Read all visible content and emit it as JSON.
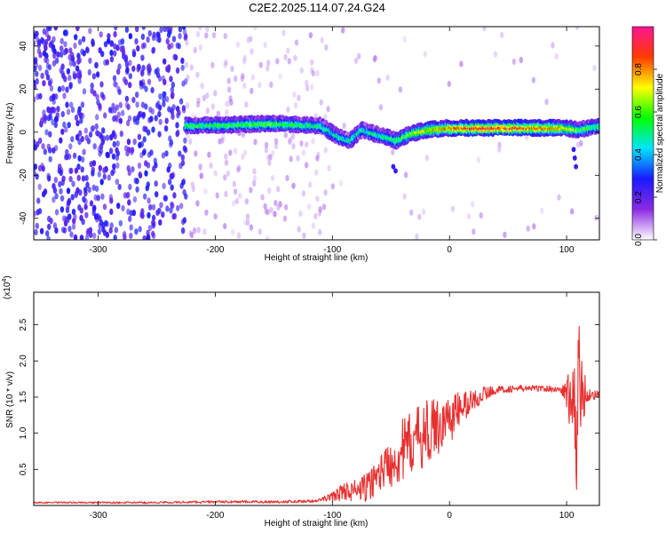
{
  "figure": {
    "title": "C2E2.2025.114.07.24.G24",
    "mark_color": "#e83030",
    "colormap": [
      "#ffffff",
      "#8b2be2",
      "#1a1aff",
      "#00e5ff",
      "#00ff00",
      "#ffff00",
      "#ff3b00",
      "#ff1493"
    ]
  },
  "chart_data": [
    {
      "type": "heatmap",
      "xlabel": "Height of straight line (km)",
      "ylabel": "Frequency (Hz)",
      "xlim": [
        -355,
        128
      ],
      "ylim": [
        -50,
        49
      ],
      "xticks": [
        -300,
        -200,
        -100,
        0,
        100
      ],
      "xtick_labels": [
        "-300",
        "-200",
        "-100",
        "0",
        "100"
      ],
      "yticks": [
        -40,
        -20,
        0,
        20,
        40
      ],
      "ytick_labels": [
        "-40",
        "-20",
        "0",
        "20",
        "40"
      ],
      "colorbar": {
        "label": "Normalized spectral amplitude",
        "range": [
          0,
          1
        ],
        "ticks": [
          0,
          0.2,
          0.4,
          0.6,
          0.8
        ],
        "tick_labels": [
          "0.0",
          "0.2",
          "0.4",
          "0.6",
          "0.8"
        ]
      },
      "band": {
        "x_start": -225,
        "center_freq": [
          [
            -225,
            3
          ],
          [
            -150,
            4
          ],
          [
            -110,
            3
          ],
          [
            -95,
            -2
          ],
          [
            -85,
            -4
          ],
          [
            -75,
            1
          ],
          [
            -55,
            -2
          ],
          [
            -45,
            -4
          ],
          [
            -35,
            -1
          ],
          [
            -20,
            1
          ],
          [
            0,
            2
          ],
          [
            50,
            2
          ],
          [
            100,
            2
          ],
          [
            110,
            1
          ],
          [
            128,
            3
          ]
        ],
        "amplitude": [
          [
            -225,
            0.55
          ],
          [
            -150,
            0.6
          ],
          [
            -100,
            0.5
          ],
          [
            -60,
            0.5
          ],
          [
            -20,
            0.75
          ],
          [
            0,
            0.85
          ],
          [
            30,
            0.95
          ],
          [
            60,
            0.9
          ],
          [
            90,
            0.85
          ],
          [
            110,
            0.6
          ],
          [
            128,
            0.55
          ]
        ]
      }
    },
    {
      "type": "line",
      "xlabel": "Height of straight line (km)",
      "ylabel": "SNR (10 * v/v)",
      "scale_label": "(x10",
      "scale_exp": "4",
      "scale_suffix": ")",
      "xlim": [
        -355,
        128
      ],
      "ylim": [
        0,
        2.95
      ],
      "xticks": [
        -300,
        -200,
        -100,
        0,
        100
      ],
      "xtick_labels": [
        "-300",
        "-200",
        "-100",
        "0",
        "100"
      ],
      "yticks": [
        0.5,
        1.0,
        1.5,
        2.0,
        2.5
      ],
      "ytick_labels": [
        "0.5",
        "1.0",
        "1.5",
        "2.0",
        "2.5"
      ],
      "series": [
        {
          "points": [
            [
              -355,
              0.04
            ],
            [
              -300,
              0.04
            ],
            [
              -250,
              0.04
            ],
            [
              -200,
              0.05
            ],
            [
              -150,
              0.05
            ],
            [
              -115,
              0.06
            ],
            [
              -100,
              0.12
            ],
            [
              -90,
              0.2
            ],
            [
              -80,
              0.2
            ],
            [
              -70,
              0.25
            ],
            [
              -60,
              0.45
            ],
            [
              -50,
              0.6
            ],
            [
              -40,
              0.75
            ],
            [
              -30,
              0.9
            ],
            [
              -20,
              1.0
            ],
            [
              -10,
              1.1
            ],
            [
              0,
              1.2
            ],
            [
              10,
              1.35
            ],
            [
              20,
              1.45
            ],
            [
              30,
              1.55
            ],
            [
              40,
              1.6
            ],
            [
              60,
              1.62
            ],
            [
              80,
              1.62
            ],
            [
              95,
              1.6
            ],
            [
              100,
              1.55
            ],
            [
              103,
              1.4
            ],
            [
              106,
              1.8
            ],
            [
              108,
              0.4
            ],
            [
              110,
              2.1
            ],
            [
              112,
              1.6
            ],
            [
              115,
              1.55
            ],
            [
              120,
              1.53
            ],
            [
              128,
              1.53
            ]
          ],
          "noise": [
            [
              -355,
              0.01
            ],
            [
              -110,
              0.02
            ],
            [
              -95,
              0.1
            ],
            [
              -60,
              0.25
            ],
            [
              -40,
              0.45
            ],
            [
              -20,
              0.45
            ],
            [
              0,
              0.35
            ],
            [
              20,
              0.15
            ],
            [
              40,
              0.05
            ],
            [
              95,
              0.04
            ],
            [
              100,
              0.2
            ],
            [
              105,
              0.9
            ],
            [
              112,
              0.6
            ],
            [
              118,
              0.1
            ],
            [
              128,
              0.05
            ]
          ]
        }
      ]
    }
  ]
}
